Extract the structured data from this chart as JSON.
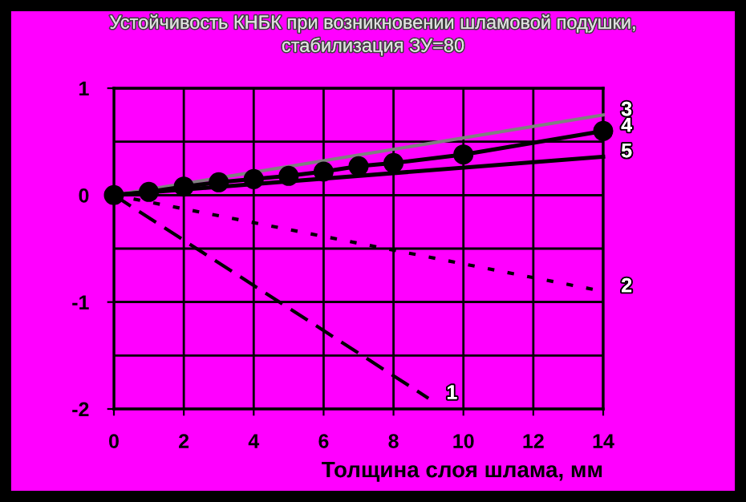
{
  "chart_data": {
    "type": "line",
    "title": "Устойчивость КНБК при возникновении шламовой подушки,\nстабилизация ЗУ=80",
    "xlabel": "Толщина слоя шлама, мм",
    "xlim": [
      0,
      14
    ],
    "xticks": [
      0,
      2,
      4,
      6,
      8,
      10,
      12,
      14
    ],
    "ylim": [
      -2,
      1
    ],
    "yticks": [
      -2,
      -1,
      0,
      1
    ],
    "grid": true,
    "legend": false,
    "series": [
      {
        "name": "1",
        "color": "#000000",
        "line_style": "dashed",
        "x": [
          0,
          9
        ],
        "values": [
          0,
          -1.9
        ]
      },
      {
        "name": "2",
        "color": "#000000",
        "line_style": "dotted",
        "x": [
          0,
          14
        ],
        "values": [
          0,
          -0.9
        ]
      },
      {
        "name": "3",
        "color": "#808080",
        "line_style": "solid",
        "x": [
          0,
          14
        ],
        "values": [
          0,
          0.75
        ]
      },
      {
        "name": "4",
        "color": "#000000",
        "line_style": "solid",
        "marker": "circle",
        "x": [
          0,
          1,
          2,
          3,
          4,
          5,
          6,
          7,
          8,
          10,
          14
        ],
        "values": [
          0,
          0.03,
          0.08,
          0.12,
          0.15,
          0.18,
          0.22,
          0.27,
          0.3,
          0.38,
          0.6
        ]
      },
      {
        "name": "5",
        "color": "#000000",
        "line_style": "solid",
        "x": [
          0,
          14
        ],
        "values": [
          0,
          0.36
        ]
      }
    ]
  }
}
